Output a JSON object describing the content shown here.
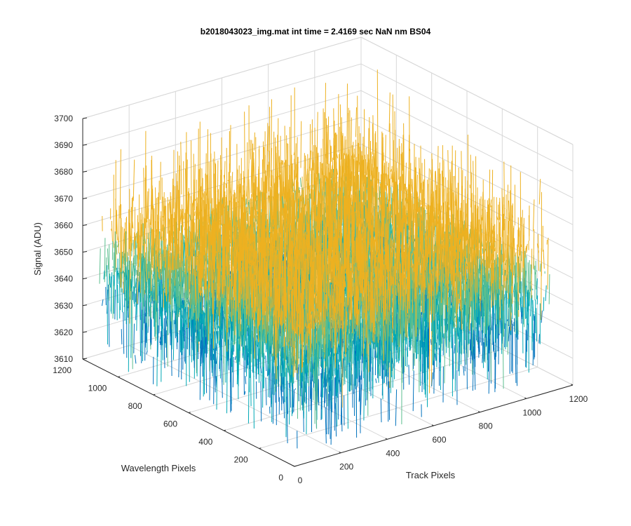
{
  "chart_data": {
    "type": "surface-3d",
    "title": "b2018043023_img.mat int time = 2.4169 sec  NaN nm BS04",
    "xlabel": "Track Pixels",
    "ylabel": "Wavelength Pixels",
    "zlabel": "Signal (ADU)",
    "xlim": [
      0,
      1200
    ],
    "ylim": [
      0,
      1200
    ],
    "zlim": [
      3610,
      3700
    ],
    "x_ticks": [
      "0",
      "200",
      "400",
      "600",
      "800",
      "1000",
      "1200"
    ],
    "y_ticks": [
      "0",
      "200",
      "400",
      "600",
      "800",
      "1000",
      "1200"
    ],
    "z_ticks": [
      "3610",
      "3620",
      "3630",
      "3640",
      "3650",
      "3660",
      "3670",
      "3680",
      "3690",
      "3700"
    ],
    "grid": true,
    "data_extent": {
      "x_max": 1100,
      "y_max": 1100
    },
    "signal": {
      "mean": 3650,
      "spread": 12,
      "max": 3698,
      "min": 3614
    },
    "colors": {
      "low": "#0072bd",
      "mid": "#00a8b5",
      "upper": "#5cbf8f",
      "high": "#edb120"
    }
  }
}
